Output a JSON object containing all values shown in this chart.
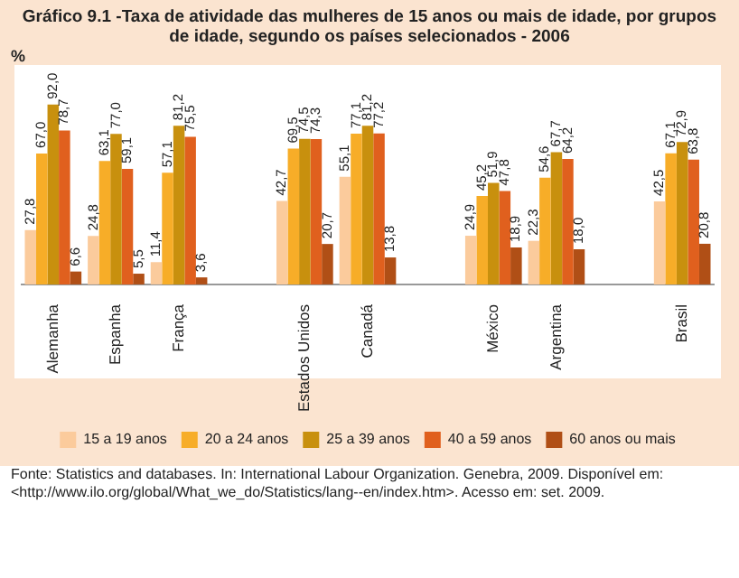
{
  "chart_data": {
    "type": "bar",
    "title": "Gráfico 9.1 -Taxa de atividade das mulheres de 15 anos ou mais de idade, por grupos de idade, segundo os países selecionados - 2006",
    "ylabel": "%",
    "categories": [
      "Alemanha",
      "Espanha",
      "França",
      null,
      "Estados Unidos",
      "Canadá",
      null,
      "México",
      "Argentina",
      null,
      "Brasil"
    ],
    "series": [
      {
        "name": "15 a 19 anos",
        "color": "#fbcb9c",
        "values": [
          27.8,
          24.8,
          11.4,
          null,
          42.7,
          55.1,
          null,
          24.9,
          22.3,
          null,
          42.5
        ],
        "value_labels": [
          "27,8",
          "24,8",
          "11,4",
          null,
          "42,7",
          "55,1",
          null,
          "24,9",
          "22,3",
          null,
          "42,5"
        ]
      },
      {
        "name": "20 a 24 anos",
        "color": "#f7ad28",
        "values": [
          67.0,
          63.1,
          57.1,
          null,
          69.5,
          77.1,
          null,
          45.2,
          54.6,
          null,
          67.1
        ],
        "value_labels": [
          "67,0",
          "63,1",
          "57,1",
          null,
          "69,5",
          "77,1",
          null,
          "45,2",
          "54,6",
          null,
          "67,1"
        ]
      },
      {
        "name": "25 a 39 anos",
        "color": "#c8900e",
        "values": [
          92.0,
          77.0,
          81.2,
          null,
          74.5,
          81.2,
          null,
          51.9,
          67.7,
          null,
          72.9
        ],
        "value_labels": [
          "92,0",
          "77,0",
          "81,2",
          null,
          "74,5",
          "81,2",
          null,
          "51,9",
          "67,7",
          null,
          "72,9"
        ]
      },
      {
        "name": "40 a 59 anos",
        "color": "#e0601e",
        "values": [
          78.7,
          59.1,
          75.5,
          null,
          74.3,
          77.2,
          null,
          47.8,
          64.2,
          null,
          63.8
        ],
        "value_labels": [
          "78,7",
          "59,1",
          "75,5",
          null,
          "74,3",
          "77,2",
          null,
          "47,8",
          "64,2",
          null,
          "63,8"
        ]
      },
      {
        "name": "60 anos ou mais",
        "color": "#b04f16",
        "values": [
          6.6,
          5.5,
          3.6,
          null,
          20.7,
          13.8,
          null,
          18.9,
          18.0,
          null,
          20.8
        ],
        "value_labels": [
          "6,6",
          "5,5",
          "3,6",
          null,
          "20,7",
          "13,8",
          null,
          "18,9",
          "18,0",
          null,
          "20,8"
        ]
      }
    ],
    "legend": "bottom",
    "annotations": [
      "Fonte: Statistics and databases. In: International Labour Organization. Genebra, 2009. Disponível em: <http://www.ilo.org/global/What_we_do/Statistics/lang--en/index.htm>. Acesso em: set. 2009."
    ]
  }
}
